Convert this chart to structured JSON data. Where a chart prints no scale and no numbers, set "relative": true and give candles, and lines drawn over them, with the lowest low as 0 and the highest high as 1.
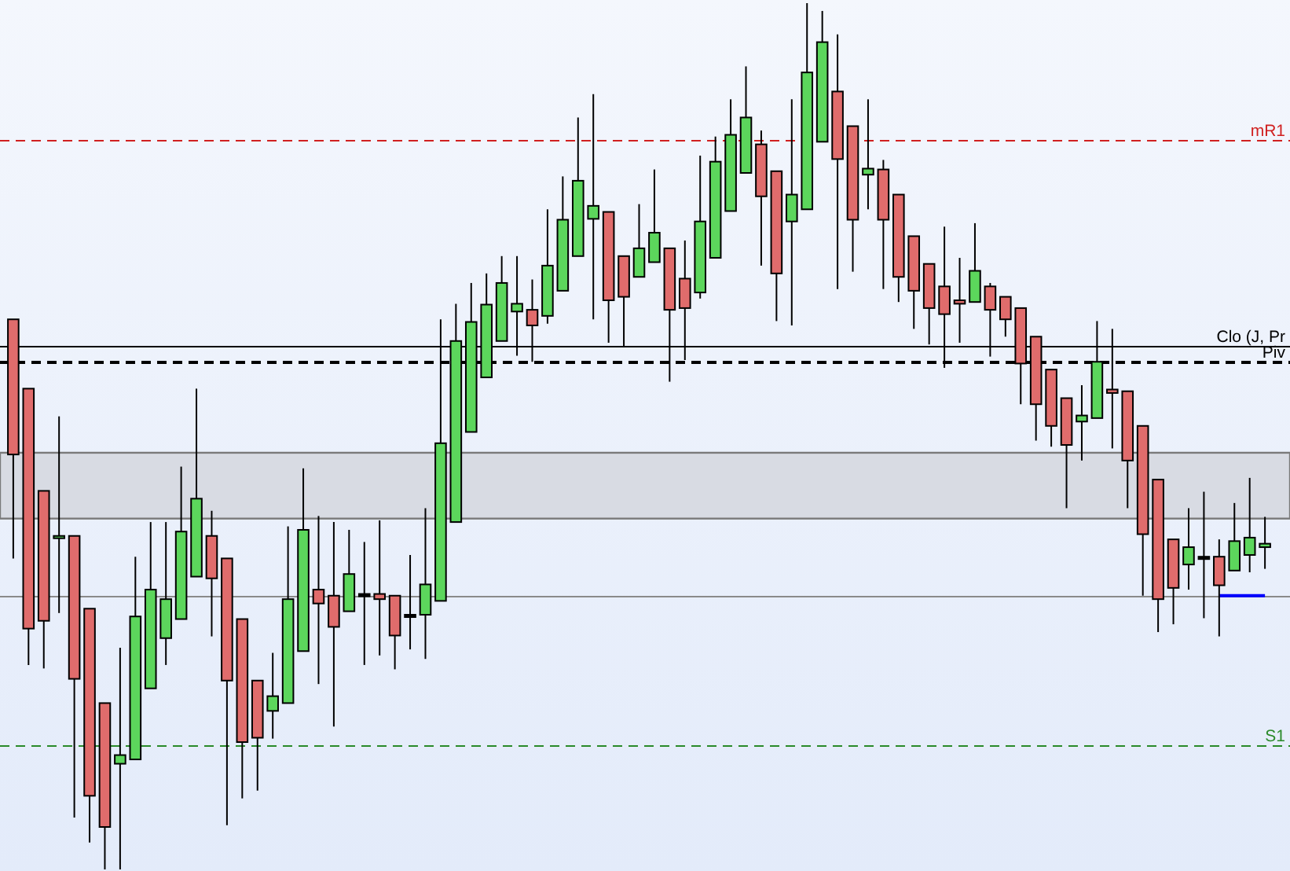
{
  "chart_data": {
    "type": "candlestick",
    "relative": true,
    "categories": [
      null,
      null,
      null,
      null,
      null,
      null,
      null,
      null,
      null,
      null,
      null,
      null,
      null,
      null,
      null,
      null,
      null,
      null,
      null,
      null,
      null,
      null,
      null,
      null,
      null,
      null,
      null,
      null,
      null,
      null,
      null,
      null,
      null,
      null,
      null,
      null,
      null,
      null,
      null,
      null,
      null,
      null,
      null,
      null,
      null,
      null,
      null,
      null,
      null,
      null,
      null,
      null,
      null,
      null,
      null,
      null,
      null,
      null,
      null,
      null,
      null,
      null,
      null,
      null,
      null,
      null,
      null,
      null,
      null,
      null,
      null,
      null,
      null,
      null,
      null,
      null,
      null,
      null,
      null,
      null,
      null,
      null,
      null
    ],
    "ohlc": [
      [
        0.635,
        0.635,
        0.359,
        0.479
      ],
      [
        0.555,
        0.555,
        0.236,
        0.278
      ],
      [
        0.437,
        0.437,
        0.232,
        0.287
      ],
      [
        0.383,
        0.523,
        0.296,
        0.385
      ],
      [
        0.385,
        0.385,
        0.06,
        0.22
      ],
      [
        0.301,
        0.301,
        0.031,
        0.085
      ],
      [
        0.192,
        0.192,
        0,
        0.049
      ],
      [
        0.122,
        0.256,
        0,
        0.132
      ],
      [
        0.127,
        0.361,
        0.127,
        0.292
      ],
      [
        0.209,
        0.401,
        0.209,
        0.323
      ],
      [
        0.267,
        0.401,
        0.236,
        0.312
      ],
      [
        0.289,
        0.465,
        0.289,
        0.39
      ],
      [
        0.338,
        0.555,
        0.338,
        0.428
      ],
      [
        0.385,
        0.414,
        0.269,
        0.336
      ],
      [
        0.359,
        0.359,
        0.051,
        0.218
      ],
      [
        0.289,
        0.289,
        0.082,
        0.147
      ],
      [
        0.218,
        0.218,
        0.091,
        0.152
      ],
      [
        0.183,
        0.25,
        0.151,
        0.2
      ],
      [
        0.192,
        0.396,
        0.192,
        0.312
      ],
      [
        0.252,
        0.463,
        0.252,
        0.392
      ],
      [
        0.323,
        0.408,
        0.214,
        0.307
      ],
      [
        0.316,
        0.401,
        0.165,
        0.28
      ],
      [
        0.298,
        0.392,
        0.298,
        0.341
      ],
      [
        0.318,
        0.378,
        0.236,
        0.318
      ],
      [
        0.318,
        0.403,
        0.247,
        0.312
      ],
      [
        0.316,
        0.316,
        0.231,
        0.27
      ],
      [
        0.294,
        0.363,
        0.254,
        0.294
      ],
      [
        0.294,
        0.417,
        0.243,
        0.329
      ],
      [
        0.31,
        0.635,
        0.31,
        0.492
      ],
      [
        0.401,
        0.653,
        0.401,
        0.61
      ],
      [
        0.505,
        0.677,
        0.505,
        0.632
      ],
      [
        0.568,
        0.688,
        0.568,
        0.652
      ],
      [
        0.61,
        0.708,
        0.61,
        0.677
      ],
      [
        0.644,
        0.708,
        0.593,
        0.653
      ],
      [
        0.646,
        0.681,
        0.586,
        0.628
      ],
      [
        0.639,
        0.762,
        0.63,
        0.697
      ],
      [
        0.668,
        0.8,
        0.668,
        0.75
      ],
      [
        0.708,
        0.868,
        0.708,
        0.795
      ],
      [
        0.751,
        0.895,
        0.635,
        0.766
      ],
      [
        0.759,
        0.759,
        0.608,
        0.657
      ],
      [
        0.708,
        0.708,
        0.604,
        0.661
      ],
      [
        0.684,
        0.768,
        0.684,
        0.717
      ],
      [
        0.701,
        0.808,
        0.701,
        0.735
      ],
      [
        0.717,
        0.717,
        0.563,
        0.646
      ],
      [
        0.682,
        0.726,
        0.588,
        0.648
      ],
      [
        0.666,
        0.824,
        0.659,
        0.748
      ],
      [
        0.706,
        0.846,
        0.706,
        0.817
      ],
      [
        0.76,
        0.889,
        0.76,
        0.848
      ],
      [
        0.804,
        0.927,
        0.804,
        0.868
      ],
      [
        0.837,
        0.853,
        0.697,
        0.777
      ],
      [
        0.806,
        0.806,
        0.633,
        0.688
      ],
      [
        0.748,
        0.889,
        0.628,
        0.779
      ],
      [
        0.762,
        1,
        0.762,
        0.92
      ],
      [
        0.84,
        0.991,
        0.84,
        0.955
      ],
      [
        0.898,
        0.964,
        0.67,
        0.82
      ],
      [
        0.858,
        0.858,
        0.69,
        0.75
      ],
      [
        0.802,
        0.889,
        0.762,
        0.809
      ],
      [
        0.808,
        0.819,
        0.67,
        0.75
      ],
      [
        0.779,
        0.779,
        0.655,
        0.684
      ],
      [
        0.731,
        0.731,
        0.624,
        0.668
      ],
      [
        0.699,
        0.699,
        0.606,
        0.648
      ],
      [
        0.673,
        0.742,
        0.579,
        0.641
      ],
      [
        0.657,
        0.706,
        0.608,
        0.653
      ],
      [
        0.655,
        0.746,
        0.655,
        0.691
      ],
      [
        0.673,
        0.677,
        0.592,
        0.646
      ],
      [
        0.661,
        0.661,
        0.615,
        0.635
      ],
      [
        0.648,
        0.648,
        0.537,
        0.584
      ],
      [
        0.615,
        0.615,
        0.495,
        0.537
      ],
      [
        0.577,
        0.577,
        0.488,
        0.512
      ],
      [
        0.544,
        0.544,
        0.417,
        0.49
      ],
      [
        0.517,
        0.559,
        0.472,
        0.524
      ],
      [
        0.521,
        0.633,
        0.521,
        0.586
      ],
      [
        0.554,
        0.624,
        0.486,
        0.55
      ],
      [
        0.552,
        0.552,
        0.417,
        0.472
      ],
      [
        0.512,
        0.512,
        0.316,
        0.387
      ],
      [
        0.45,
        0.45,
        0.274,
        0.312
      ],
      [
        0.381,
        0.381,
        0.283,
        0.325
      ],
      [
        0.352,
        0.417,
        0.323,
        0.372
      ],
      [
        0.361,
        0.436,
        0.29,
        0.361
      ],
      [
        0.361,
        0.381,
        0.269,
        0.328
      ],
      [
        0.345,
        0.423,
        0.345,
        0.379
      ],
      [
        0.363,
        0.452,
        0.343,
        0.383
      ],
      [
        0.372,
        0.407,
        0.347,
        0.376
      ]
    ],
    "colors": [
      "#e06c6c",
      "#e06c6c",
      "#e06c6c",
      "#5cd65c",
      "#e06c6c",
      "#e06c6c",
      "#e06c6c",
      "#5cd65c",
      "#5cd65c",
      "#5cd65c",
      "#5cd65c",
      "#5cd65c",
      "#5cd65c",
      "#e06c6c",
      "#e06c6c",
      "#e06c6c",
      "#e06c6c",
      "#5cd65c",
      "#5cd65c",
      "#5cd65c",
      "#e06c6c",
      "#e06c6c",
      "#5cd65c",
      "#000000",
      "#e06c6c",
      "#e06c6c",
      "#000000",
      "#5cd65c",
      "#5cd65c",
      "#5cd65c",
      "#5cd65c",
      "#5cd65c",
      "#5cd65c",
      "#5cd65c",
      "#e06c6c",
      "#5cd65c",
      "#5cd65c",
      "#5cd65c",
      "#5cd65c",
      "#e06c6c",
      "#e06c6c",
      "#5cd65c",
      "#5cd65c",
      "#e06c6c",
      "#e06c6c",
      "#5cd65c",
      "#5cd65c",
      "#5cd65c",
      "#5cd65c",
      "#e06c6c",
      "#e06c6c",
      "#5cd65c",
      "#5cd65c",
      "#5cd65c",
      "#e06c6c",
      "#e06c6c",
      "#5cd65c",
      "#e06c6c",
      "#e06c6c",
      "#e06c6c",
      "#e06c6c",
      "#e06c6c",
      "#e06c6c",
      "#5cd65c",
      "#e06c6c",
      "#e06c6c",
      "#e06c6c",
      "#e06c6c",
      "#e06c6c",
      "#e06c6c",
      "#5cd65c",
      "#5cd65c",
      "#e06c6c",
      "#e06c6c",
      "#e06c6c",
      "#e06c6c",
      "#e06c6c",
      "#5cd65c",
      "#000000",
      "#e06c6c",
      "#5cd65c",
      "#5cd65c",
      "#5cd65c"
    ],
    "series": [
      {
        "type": "line",
        "color": "#0000ff",
        "values": [
          null,
          null,
          null,
          null,
          null,
          null,
          null,
          null,
          null,
          null,
          null,
          null,
          null,
          null,
          null,
          null,
          null,
          null,
          null,
          null,
          null,
          null,
          null,
          null,
          null,
          null,
          null,
          null,
          null,
          null,
          null,
          null,
          null,
          null,
          null,
          null,
          null,
          null,
          null,
          null,
          null,
          null,
          null,
          null,
          null,
          null,
          null,
          null,
          null,
          null,
          null,
          null,
          null,
          null,
          null,
          null,
          null,
          null,
          null,
          null,
          null,
          null,
          null,
          null,
          null,
          null,
          null,
          null,
          null,
          null,
          null,
          null,
          null,
          null,
          null,
          null,
          null,
          null,
          null,
          0.316,
          0.316,
          0.316,
          0.316
        ]
      }
    ],
    "bands": [
      {
        "axis": "y",
        "from": 0.405,
        "to": 0.481,
        "color": "#d8dbe3"
      }
    ],
    "ref_lines": [
      {
        "axis": "y",
        "value": 0.842,
        "label": "mR1",
        "color": "#d02020",
        "line_style": "dashed"
      },
      {
        "axis": "y",
        "value": 0.604,
        "label": "Clo (J, Pr",
        "color": "#000000",
        "line_style": "solid"
      },
      {
        "axis": "y",
        "value": 0.586,
        "label": "Piv",
        "color": "#000000",
        "line_style": "dashed"
      },
      {
        "axis": "y",
        "value": 0.316,
        "label": null,
        "color": "#8a8a8a",
        "line_style": "solid"
      },
      {
        "axis": "y",
        "value": 0.143,
        "label": "S1",
        "color": "#2a8a2a",
        "line_style": "dashed"
      }
    ]
  }
}
